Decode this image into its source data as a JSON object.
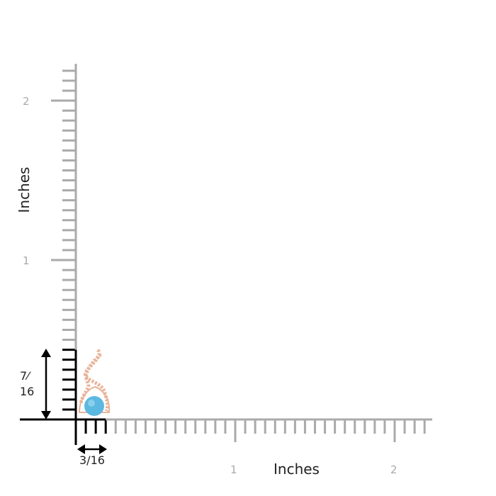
{
  "ruler": {
    "unit_label_x": "Inches",
    "unit_label_y": "Inches",
    "x_ticks": [
      "1",
      "2"
    ],
    "y_ticks": [
      "1",
      "2"
    ],
    "tick_division": 16,
    "tick_color": "#aaaaaa",
    "highlight_color": "#000000"
  },
  "product": {
    "height_label_num": "7",
    "height_label_den": "16",
    "width_label": "3/16",
    "height_sixteenths": 7,
    "width_sixteenths": 3,
    "stone_color": "#5bb8e0",
    "metal_color": "#e8b49a"
  }
}
